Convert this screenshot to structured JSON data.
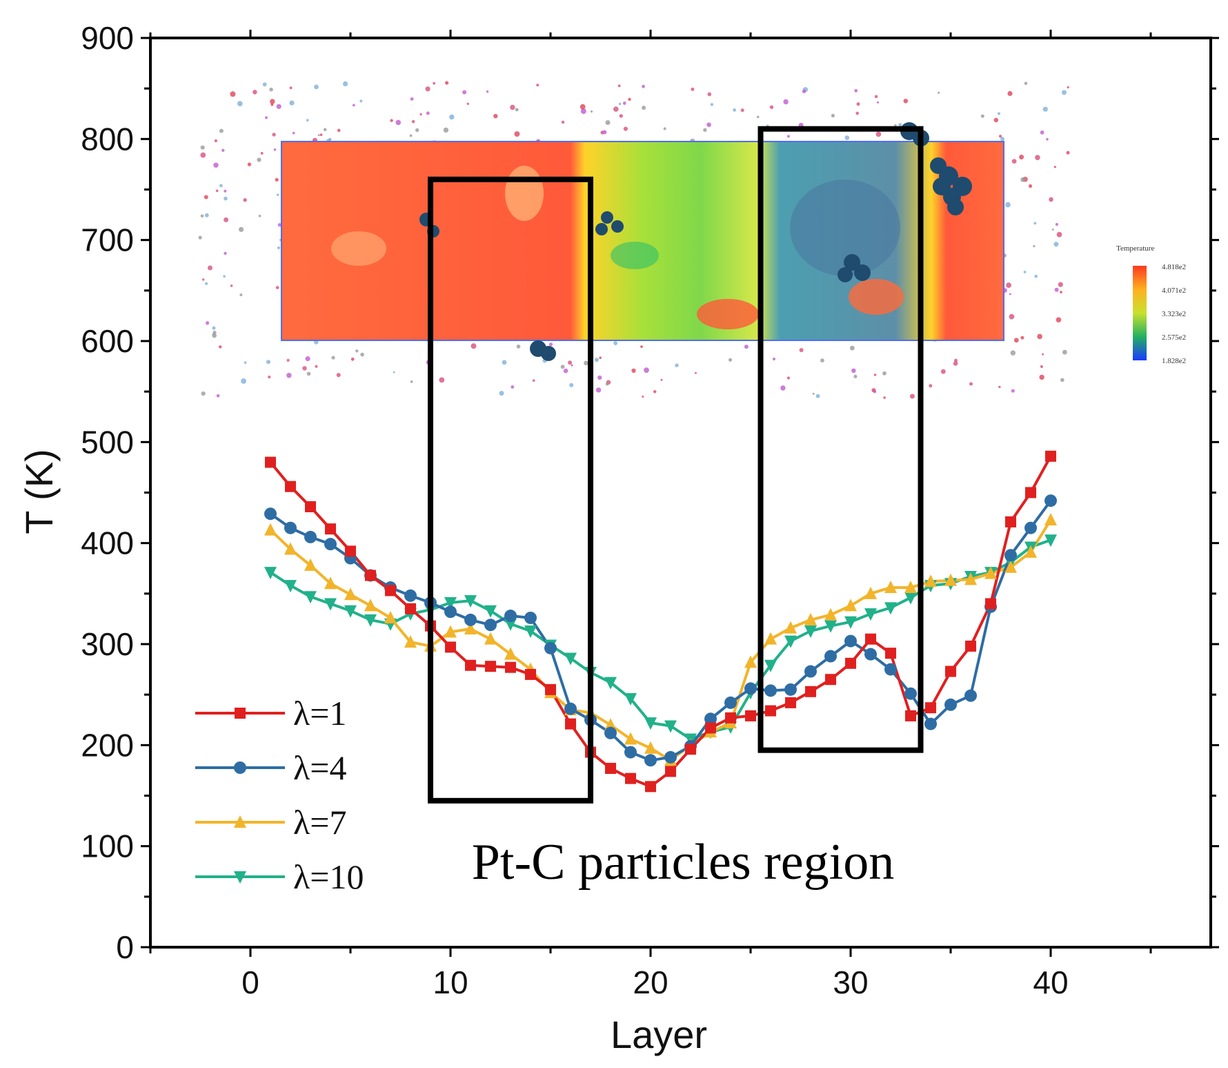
{
  "chart_data": {
    "type": "line",
    "title": "",
    "xlabel": "Layer",
    "ylabel": "T (K)",
    "xlim": [
      -5,
      48
    ],
    "ylim": [
      0,
      900
    ],
    "xticks": [
      0,
      10,
      20,
      30,
      40
    ],
    "yticks": [
      0,
      100,
      200,
      300,
      400,
      500,
      600,
      700,
      800,
      900
    ],
    "legend_position": "bottom-left",
    "x": [
      1,
      2,
      3,
      4,
      5,
      6,
      7,
      8,
      9,
      10,
      11,
      12,
      13,
      14,
      15,
      16,
      17,
      18,
      19,
      20,
      21,
      22,
      23,
      24,
      25,
      26,
      27,
      28,
      29,
      30,
      31,
      32,
      33,
      34,
      35,
      36,
      37,
      38,
      39,
      40
    ],
    "series": [
      {
        "name": "λ=1",
        "color": "#e0201f",
        "marker": "square",
        "values": [
          480,
          456,
          436,
          414,
          392,
          368,
          353,
          335,
          318,
          297,
          279,
          278,
          277,
          270,
          255,
          221,
          193,
          177,
          167,
          159,
          174,
          196,
          217,
          227,
          229,
          234,
          242,
          253,
          265,
          281,
          305,
          291,
          229,
          237,
          273,
          298,
          340,
          421,
          450,
          486
        ]
      },
      {
        "name": "λ=4",
        "color": "#2e6da4",
        "marker": "circle",
        "values": [
          429,
          415,
          406,
          399,
          385,
          368,
          356,
          348,
          341,
          332,
          324,
          319,
          328,
          326,
          296,
          236,
          225,
          212,
          193,
          185,
          188,
          199,
          226,
          242,
          256,
          254,
          255,
          273,
          288,
          303,
          290,
          275,
          251,
          221,
          240,
          249,
          337,
          388,
          415,
          442
        ]
      },
      {
        "name": "λ=7",
        "color": "#f2b42a",
        "marker": "triangle-up",
        "values": [
          413,
          394,
          378,
          360,
          349,
          338,
          326,
          302,
          298,
          312,
          315,
          305,
          290,
          275,
          252,
          235,
          232,
          220,
          206,
          197,
          185,
          200,
          213,
          222,
          282,
          305,
          316,
          324,
          329,
          338,
          350,
          356,
          356,
          362,
          363,
          364,
          370,
          376,
          391,
          423
        ]
      },
      {
        "name": "λ=10",
        "color": "#21b18a",
        "marker": "triangle-down",
        "values": [
          371,
          358,
          347,
          340,
          333,
          324,
          320,
          330,
          334,
          341,
          343,
          333,
          320,
          313,
          299,
          286,
          272,
          262,
          246,
          222,
          219,
          206,
          213,
          218,
          252,
          279,
          303,
          313,
          318,
          322,
          330,
          336,
          346,
          358,
          360,
          367,
          371,
          381,
          396,
          403
        ]
      }
    ],
    "annotation": "Pt-C particles region",
    "highlight_regions": [
      {
        "x_range": [
          9,
          17
        ],
        "y_range": [
          145,
          760
        ]
      },
      {
        "x_range": [
          25.5,
          33.5
        ],
        "y_range": [
          195,
          810
        ]
      }
    ],
    "inset": {
      "description": "molecular snapshot with temperature map",
      "colorbar_title": "Temperature",
      "colorbar_labels": [
        "4.818e2",
        "4.071e2",
        "3.323e2",
        "2.575e2",
        "1.828e2"
      ]
    }
  }
}
